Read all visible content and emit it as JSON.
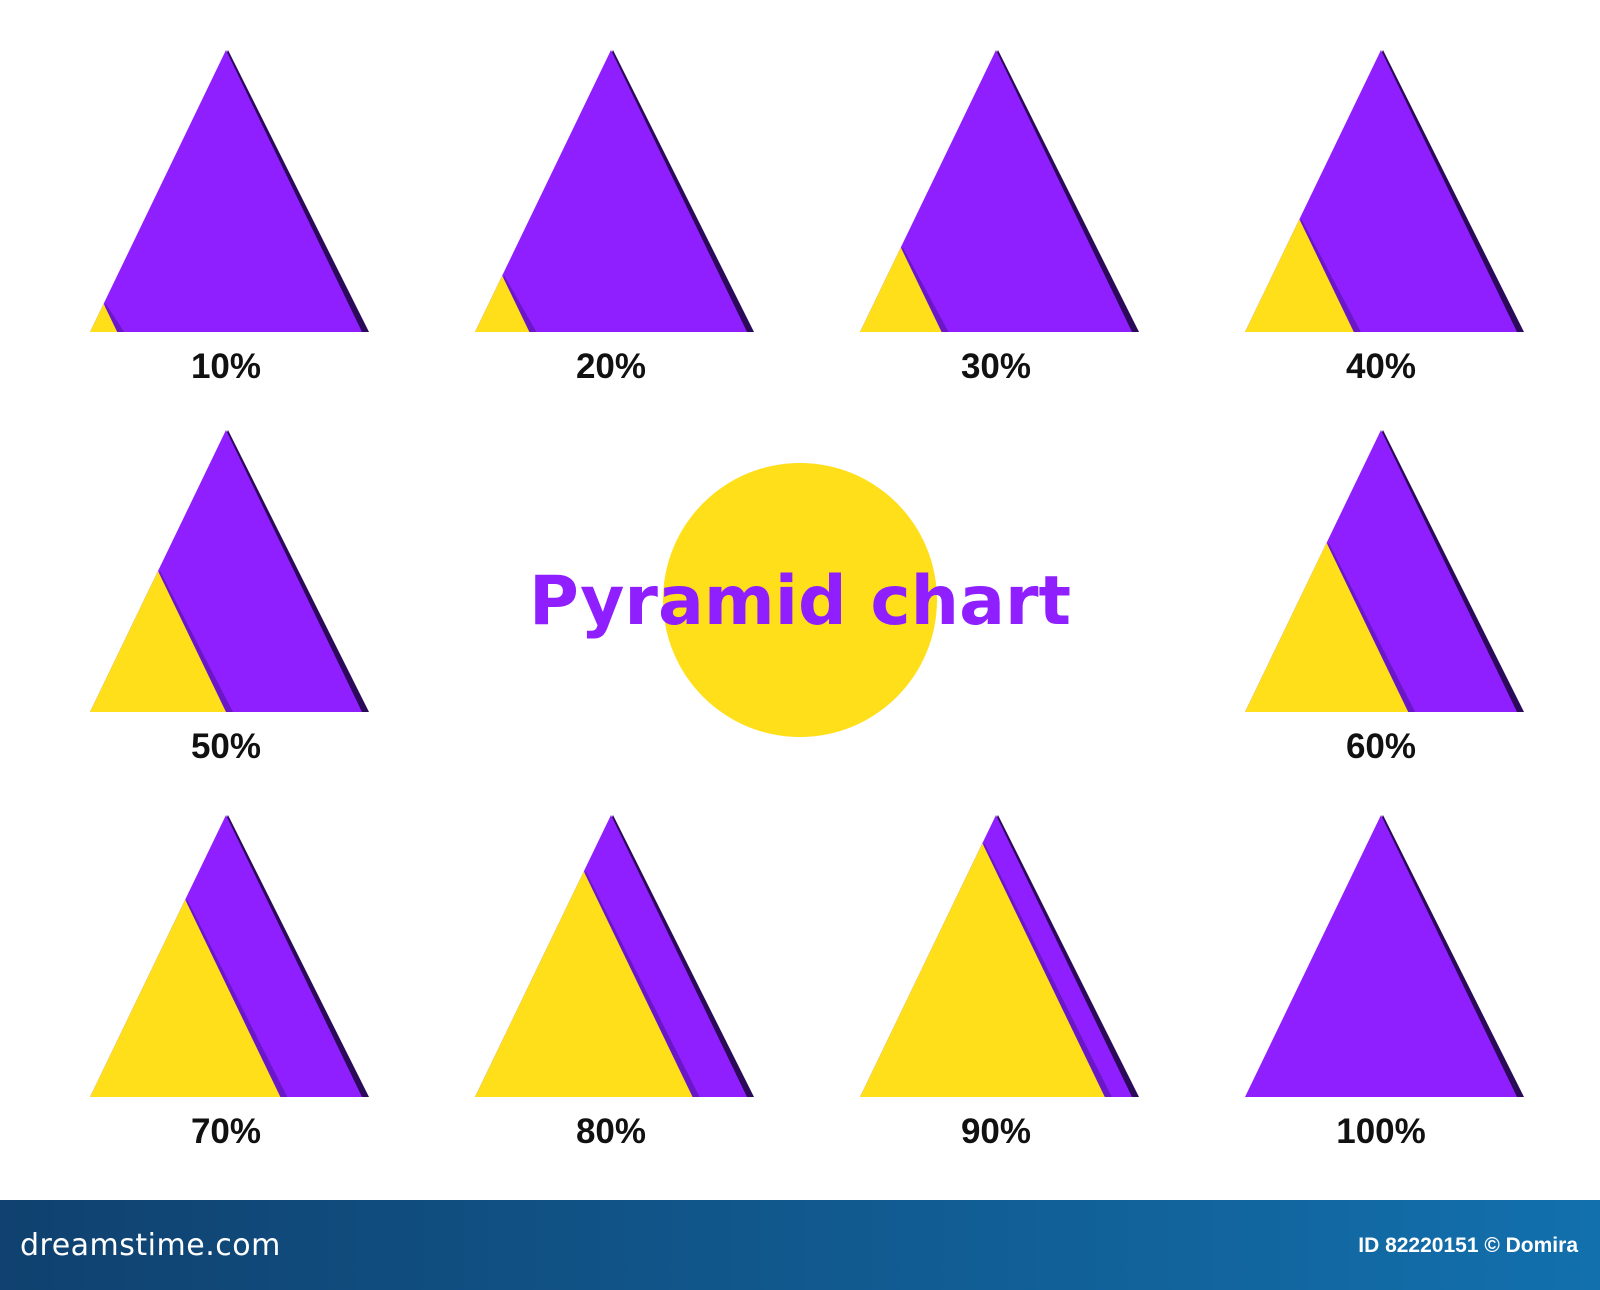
{
  "chart_data": {
    "type": "pyramid",
    "title": "Pyramid chart",
    "charts": [
      {
        "label": "10%",
        "value": 10
      },
      {
        "label": "20%",
        "value": 20
      },
      {
        "label": "30%",
        "value": 30
      },
      {
        "label": "40%",
        "value": 40
      },
      {
        "label": "50%",
        "value": 50
      },
      {
        "label": "60%",
        "value": 60
      },
      {
        "label": "70%",
        "value": 70
      },
      {
        "label": "80%",
        "value": 80
      },
      {
        "label": "90%",
        "value": 90
      },
      {
        "label": "100%",
        "value": 100
      }
    ],
    "colors": {
      "base": "#8f1fff",
      "fill": "#ffde1a",
      "shadow": "#2b0a59",
      "title": "#8f1fff",
      "title_circle": "#ffde1a",
      "label": "#111111"
    }
  },
  "footer": {
    "brand": "dreamstime.com",
    "credit": "ID 82220151 © Domira"
  }
}
